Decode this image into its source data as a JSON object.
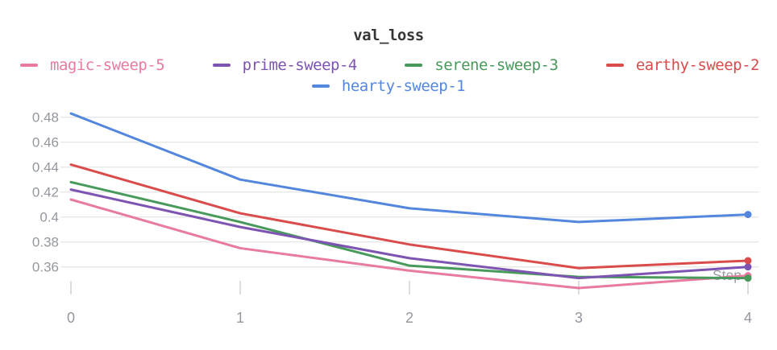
{
  "title": "val_loss",
  "legend": {
    "rows": [
      [
        "magic-sweep-5",
        "prime-sweep-4",
        "serene-sweep-3",
        "earthy-sweep-2"
      ],
      [
        "hearty-sweep-1"
      ]
    ]
  },
  "colors": {
    "background": "#ffffff",
    "title_text": "#363636",
    "grid_line": "#e7e7e7",
    "tick_mark": "#d3d6da",
    "axis_text": "#94989e",
    "magic_sweep_5": "#E87B9F",
    "prime_sweep_4": "#7D54B2",
    "serene_sweep_3": "#479A5B",
    "earthy_sweep_2": "#DA4C4C",
    "hearty_sweep_1": "#5387DD"
  },
  "chart_data": {
    "type": "line",
    "title": "val_loss",
    "xlabel": "Step",
    "ylabel": "",
    "x": [
      0,
      1,
      2,
      3,
      4
    ],
    "x_tick_labels": [
      "0",
      "1",
      "2",
      "3",
      "4"
    ],
    "y_ticks": [
      0.36,
      0.38,
      0.4,
      0.42,
      0.44,
      0.46,
      0.48
    ],
    "y_tick_labels": [
      "0.36",
      "0.38",
      "0.4",
      "0.42",
      "0.44",
      "0.46",
      "0.48"
    ],
    "ylim": [
      0.336,
      0.487
    ],
    "grid": "horizontal-only",
    "legend_position": "top",
    "end_point_markers": true,
    "series": [
      {
        "name": "magic-sweep-5",
        "color": "#E87B9F",
        "values": [
          0.414,
          0.375,
          0.357,
          0.343,
          0.353
        ]
      },
      {
        "name": "prime-sweep-4",
        "color": "#7D54B2",
        "values": [
          0.422,
          0.392,
          0.367,
          0.351,
          0.36
        ]
      },
      {
        "name": "serene-sweep-3",
        "color": "#479A5B",
        "values": [
          0.428,
          0.396,
          0.361,
          0.352,
          0.351
        ]
      },
      {
        "name": "earthy-sweep-2",
        "color": "#DA4C4C",
        "values": [
          0.442,
          0.403,
          0.378,
          0.359,
          0.365
        ]
      },
      {
        "name": "hearty-sweep-1",
        "color": "#5387DD",
        "values": [
          0.483,
          0.43,
          0.407,
          0.396,
          0.402
        ]
      }
    ],
    "draw_order": [
      "magic-sweep-5",
      "serene-sweep-3",
      "prime-sweep-4",
      "earthy-sweep-2",
      "hearty-sweep-1"
    ]
  }
}
